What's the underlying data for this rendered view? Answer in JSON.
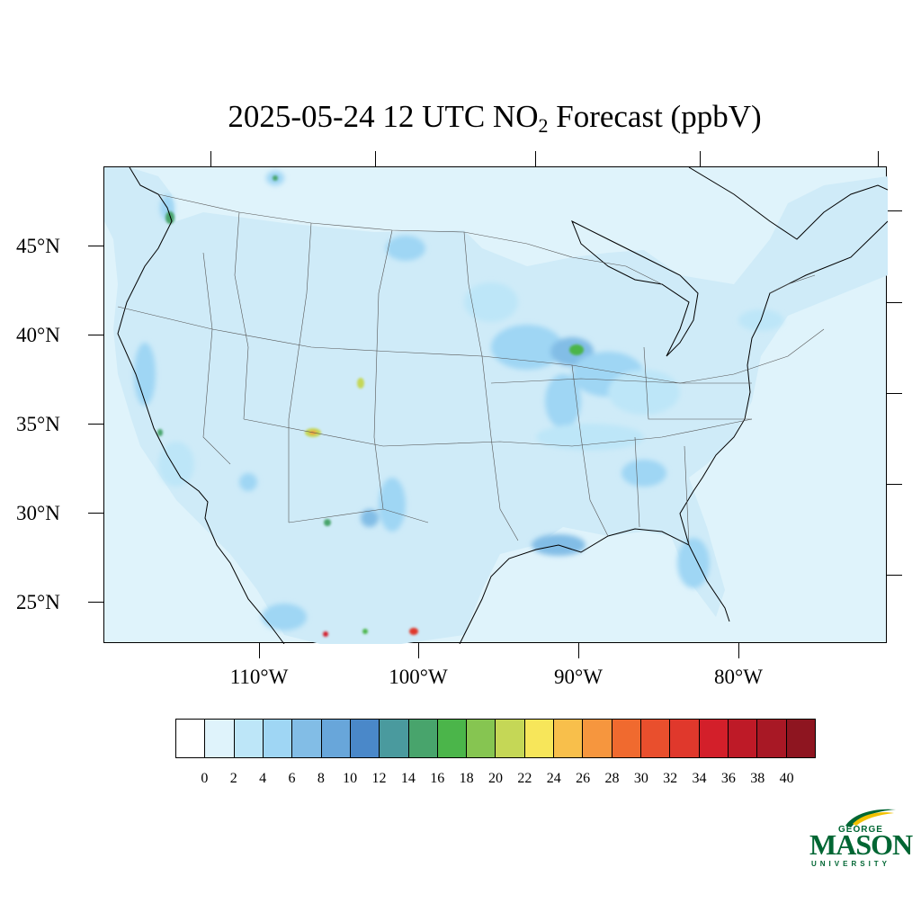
{
  "title": {
    "date_time": "2025-05-24 12 UTC NO",
    "subscript": "2",
    "rest": " Forecast (ppbV)"
  },
  "map": {
    "ocean_color": "#dff3fb",
    "lat_labels": [
      "45°N",
      "40°N",
      "35°N",
      "30°N",
      "25°N"
    ],
    "lon_labels": [
      "110°W",
      "100°W",
      "90°W",
      "80°W"
    ]
  },
  "colorbar": {
    "colors": [
      "#ffffff",
      "#dff3fb",
      "#bde6f8",
      "#9fd6f4",
      "#82bde6",
      "#68a6da",
      "#4a88c9",
      "#4a9a9e",
      "#48a46c",
      "#4bb54a",
      "#86c551",
      "#c5d756",
      "#f7e65a",
      "#f8bf4b",
      "#f6963e",
      "#f06a2f",
      "#e94f2d",
      "#e0382c",
      "#d31f2a",
      "#be1a27",
      "#a81825",
      "#8e1520"
    ],
    "labels": [
      "0",
      "2",
      "4",
      "6",
      "8",
      "10",
      "12",
      "14",
      "16",
      "18",
      "20",
      "22",
      "24",
      "26",
      "28",
      "30",
      "32",
      "34",
      "36",
      "38",
      "40"
    ]
  },
  "logo": {
    "line1": "GEORGE",
    "line2": "MASON",
    "line3": "UNIVERSITY",
    "color": "#006633",
    "accent": "#f2c100"
  }
}
